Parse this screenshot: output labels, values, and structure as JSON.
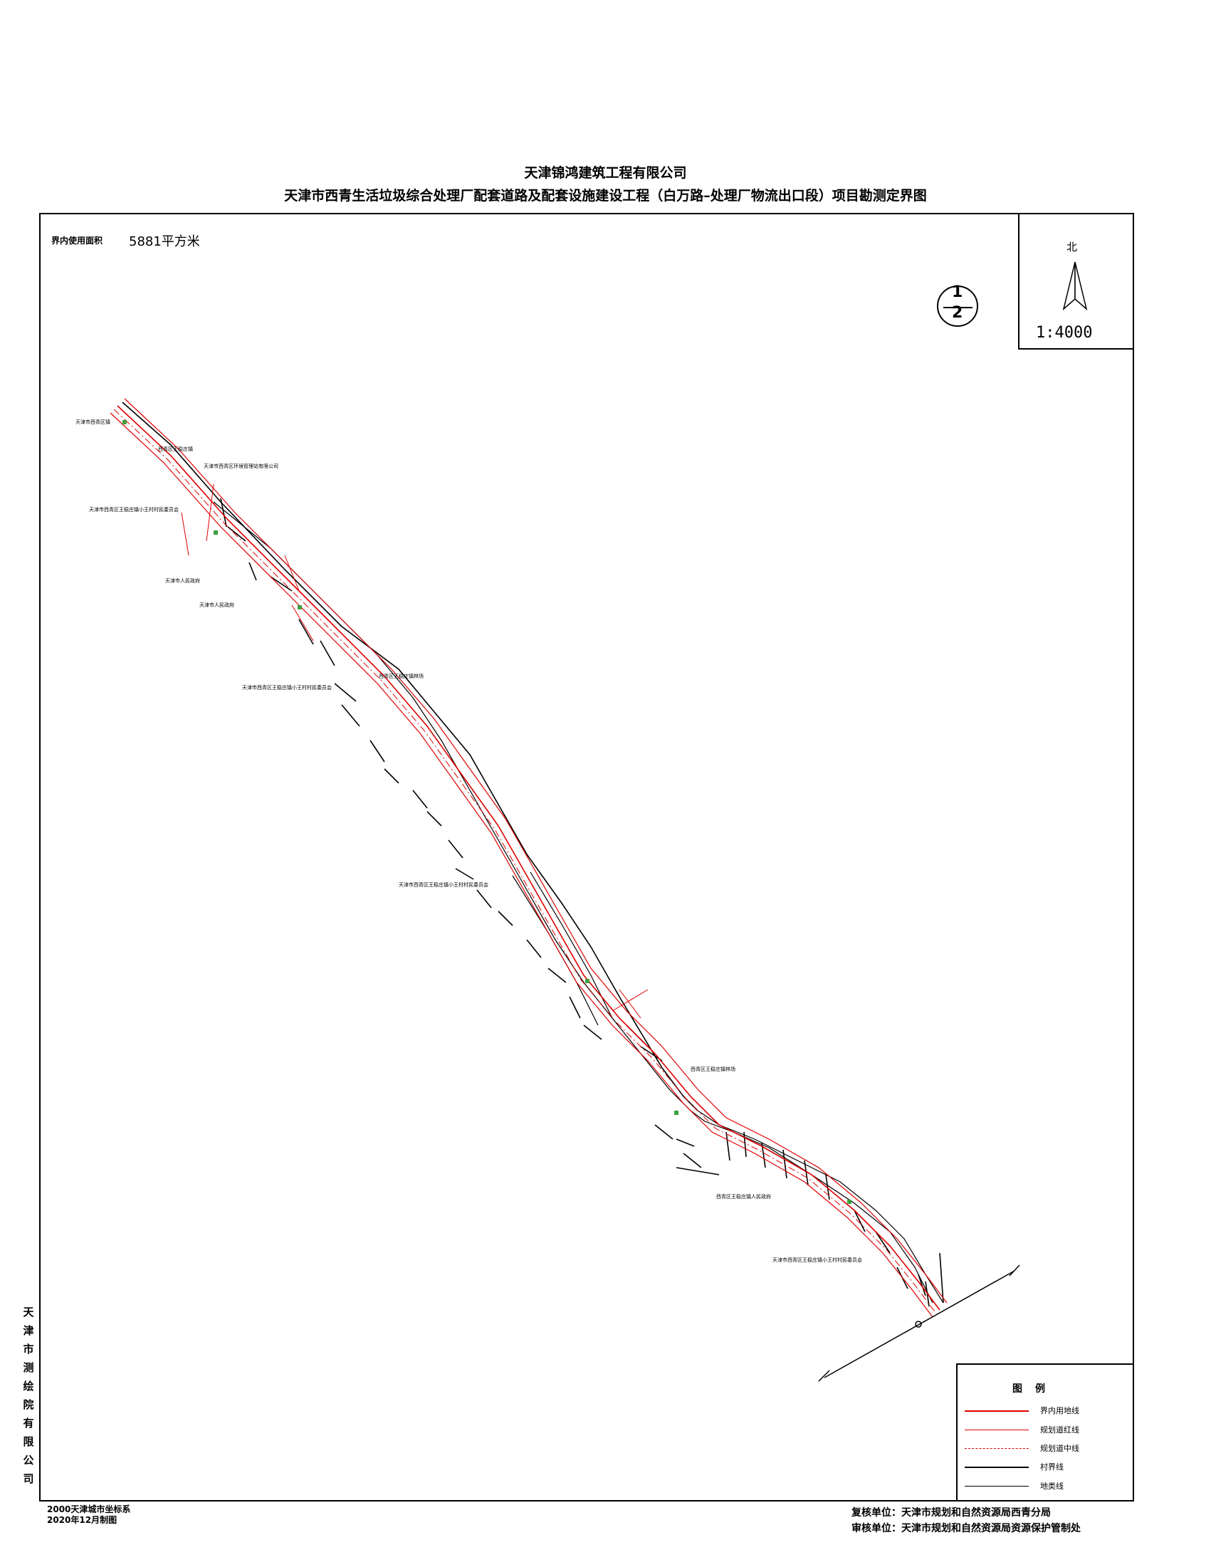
{
  "header": {
    "company": "天津锦鸿建筑工程有限公司",
    "project_title": "天津市西青生活垃圾综合处理厂配套道路及配套设施建设工程（白万路–处理厂物流出口段）项目勘测定界图"
  },
  "area": {
    "label": "界内使用面积",
    "value": "5881平方米"
  },
  "north_arrow": {
    "label": "北",
    "icon": "north-arrow-icon"
  },
  "scale": "1:4000",
  "sheet": {
    "current": "1",
    "total": "2"
  },
  "map_labels": [
    "天津市西青区镇",
    "西青区王稳庄镇",
    "天津市西青区环境管理站有限公司",
    "天津市西青区王稳庄镇小王村村民委员会",
    "天津市人民政府",
    "天津市人民政府",
    "西青区王稳庄镇林场",
    "天津市西青区王稳庄镇小王村村民委员会",
    "天津市西青区王稳庄镇小王村村民委员会",
    "西青区王稳庄镇林场",
    "西青区王稳庄镇人民政府",
    "天津市西青区王稳庄镇小王村村民委员会"
  ],
  "legend": {
    "title": "图例",
    "items": [
      {
        "label": "界内用地线",
        "color": "#e00000",
        "style": "solid-thick"
      },
      {
        "label": "规划道红线",
        "color": "#e00000",
        "style": "solid"
      },
      {
        "label": "规划道中线",
        "color": "#e00000",
        "style": "dash"
      },
      {
        "label": "村界线",
        "color": "#000000",
        "style": "solid-thick"
      },
      {
        "label": "地类线",
        "color": "#000000",
        "style": "solid"
      }
    ]
  },
  "side_org": "天津市测绘院有限公司",
  "footer": {
    "coordinate_system": "2000天津城市坐标系",
    "made_date": "2020年12月制图",
    "review1": "复核单位：天津市规划和自然资源局西青分局",
    "review2": "审核单位：天津市规划和自然资源局资源保护管制处"
  },
  "colors": {
    "red_line": "#e00000",
    "green_marker": "#3fa03f"
  }
}
